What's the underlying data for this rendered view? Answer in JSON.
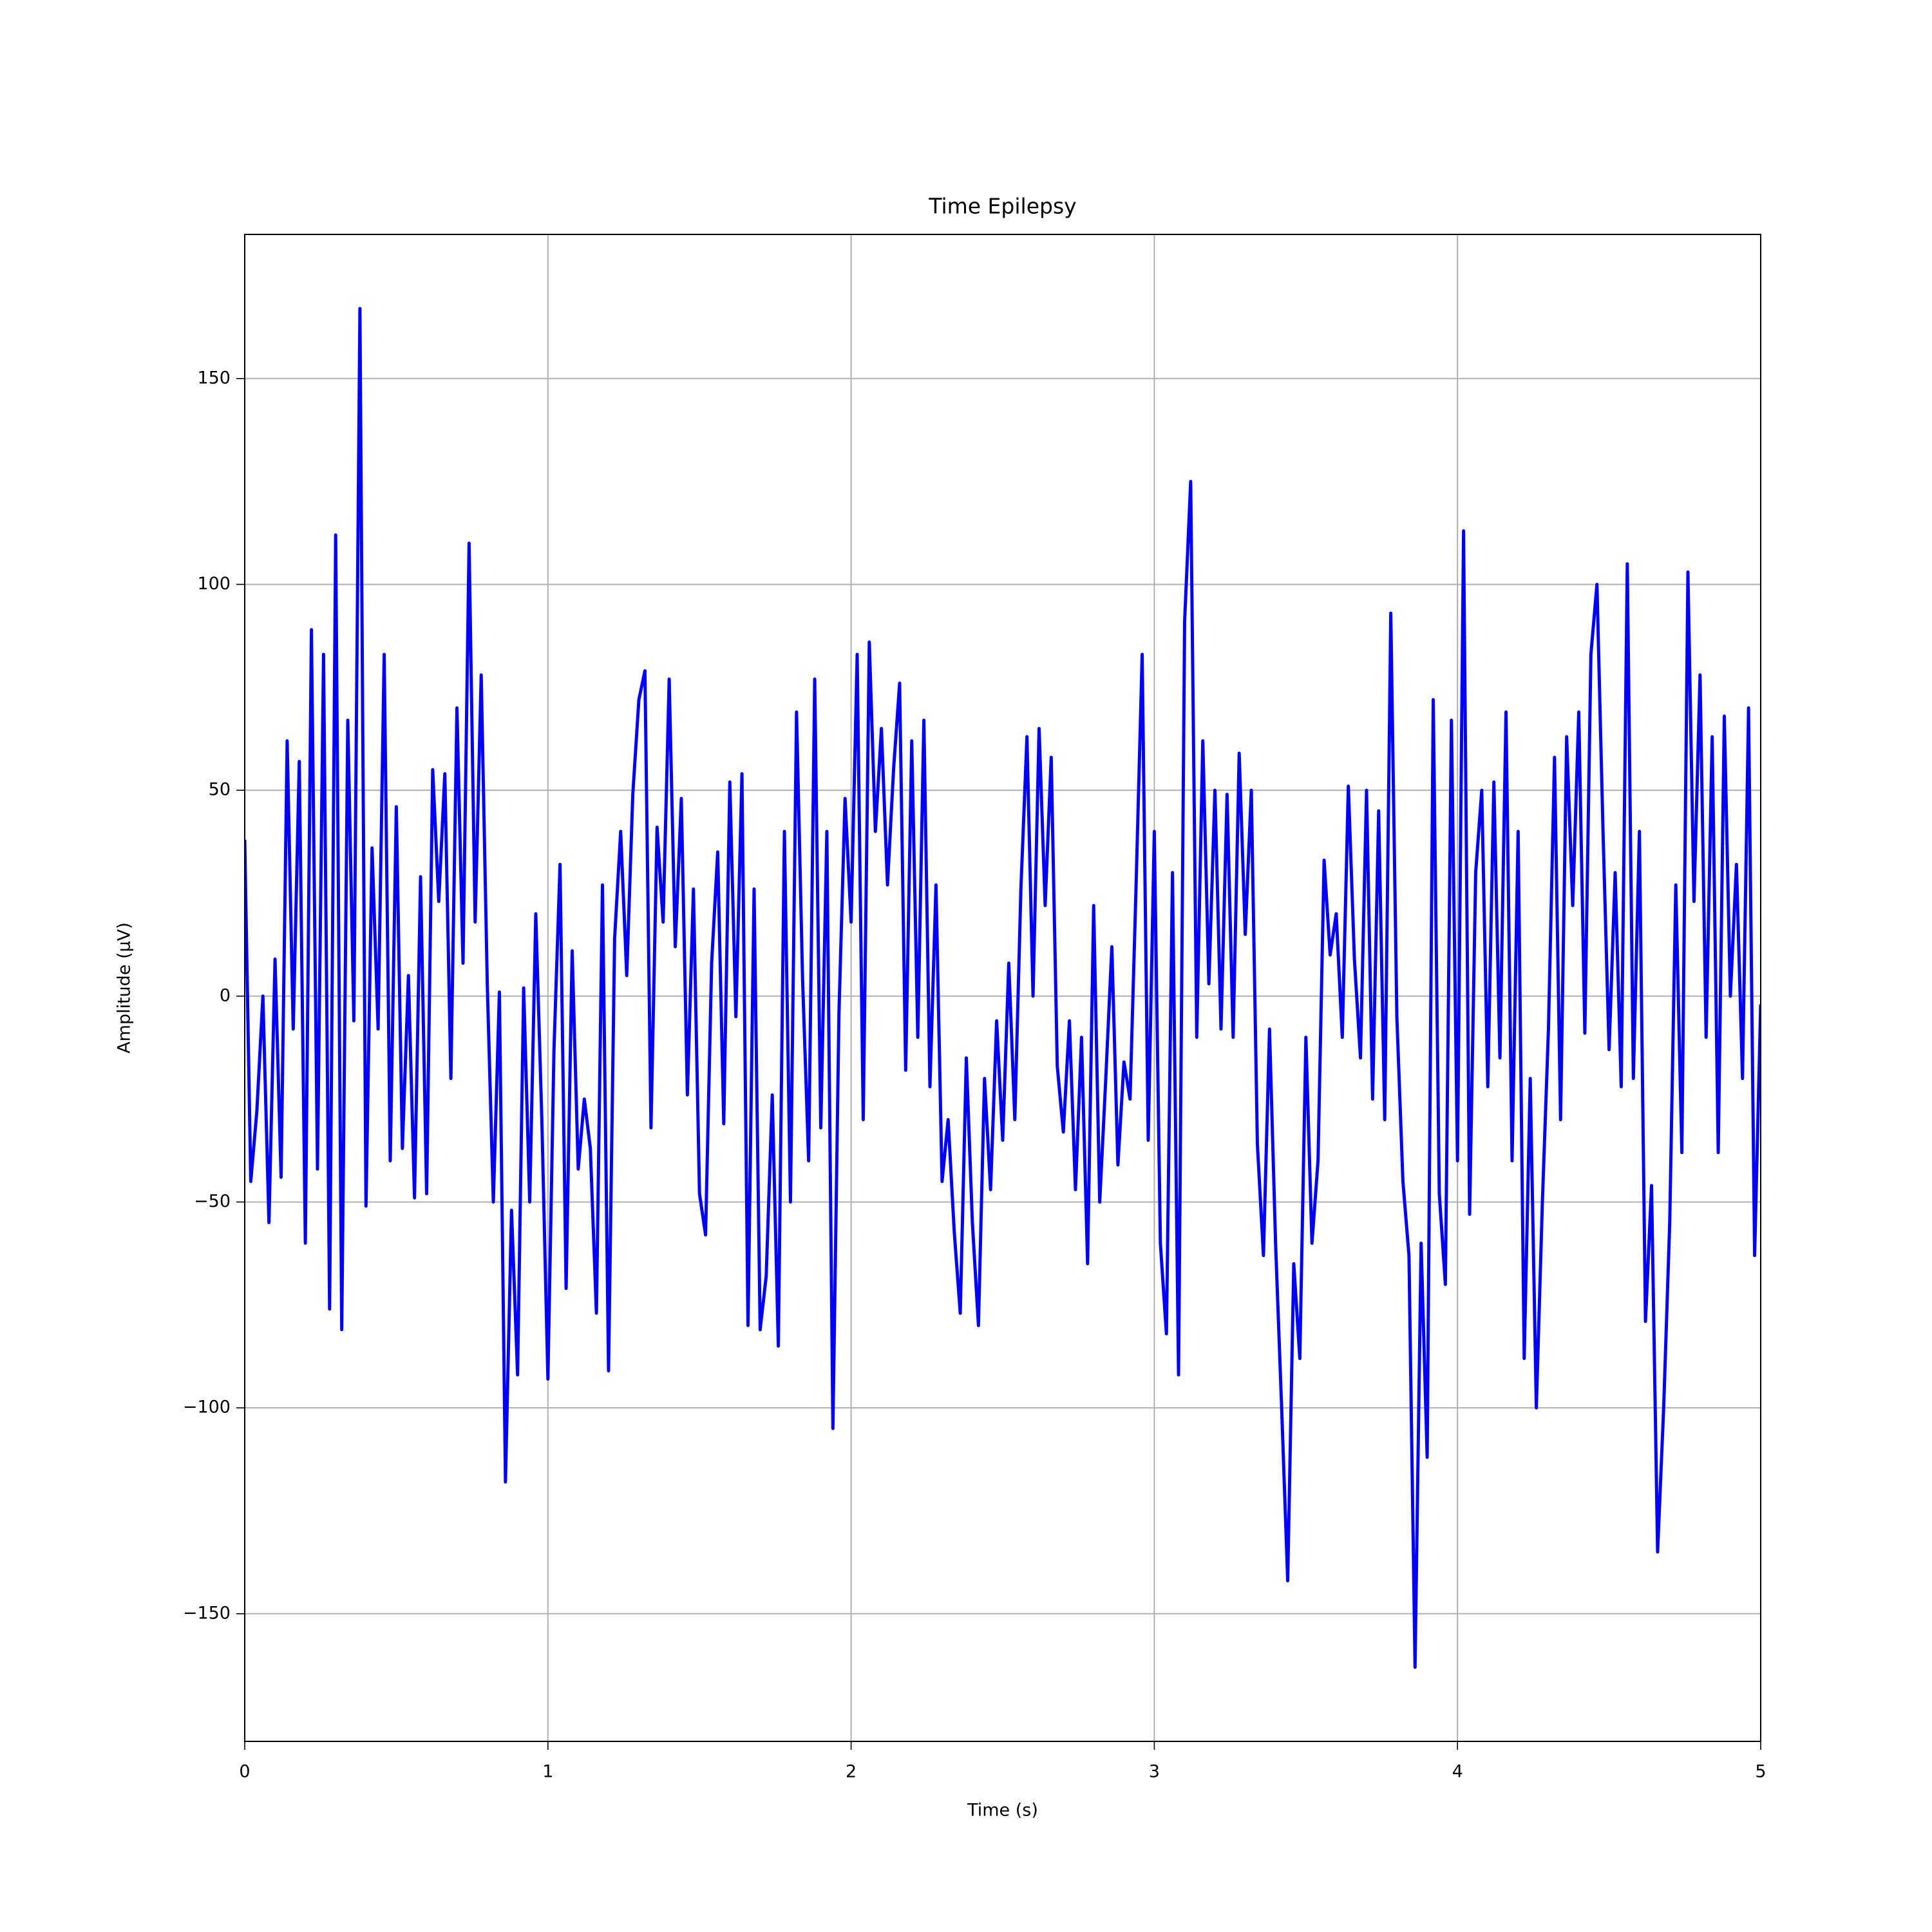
{
  "chart_data": {
    "type": "line",
    "title": "Time Epilepsy",
    "x_label": "Time (s)",
    "y_label": "Amplitude (µV)",
    "color": "#0000ff",
    "grid": true,
    "xlim": [
      0,
      5
    ],
    "ylim": [
      -181,
      185
    ],
    "xticks": [
      0,
      1,
      2,
      3,
      4,
      5
    ],
    "yticks": [
      {
        "value": -150,
        "label": "−150"
      },
      {
        "value": -100,
        "label": "−100"
      },
      {
        "value": -50,
        "label": "−50"
      },
      0,
      50,
      100,
      150
    ],
    "x": [
      0,
      0.02,
      0.04,
      0.06,
      0.08,
      0.1,
      0.12,
      0.14,
      0.16,
      0.18,
      0.2,
      0.22,
      0.24,
      0.26,
      0.28,
      0.3,
      0.32,
      0.34,
      0.36,
      0.38,
      0.4,
      0.42,
      0.44,
      0.46,
      0.48,
      0.5,
      0.52,
      0.54,
      0.56,
      0.58,
      0.6,
      0.62,
      0.64,
      0.66,
      0.68,
      0.7,
      0.72,
      0.74,
      0.76,
      0.78,
      0.8,
      0.82,
      0.84,
      0.86,
      0.88,
      0.9,
      0.92,
      0.94,
      0.96,
      0.98,
      1,
      1.02,
      1.04,
      1.06,
      1.08,
      1.1,
      1.12,
      1.14,
      1.16,
      1.18,
      1.2,
      1.22,
      1.24,
      1.26,
      1.28,
      1.3,
      1.32,
      1.34,
      1.36,
      1.38,
      1.4,
      1.42,
      1.44,
      1.46,
      1.48,
      1.5,
      1.52,
      1.54,
      1.56,
      1.58,
      1.6,
      1.62,
      1.64,
      1.66,
      1.68,
      1.7,
      1.72,
      1.74,
      1.76,
      1.78,
      1.8,
      1.82,
      1.84,
      1.86,
      1.88,
      1.9,
      1.92,
      1.94,
      1.96,
      1.98,
      2,
      2.02,
      2.04,
      2.06,
      2.08,
      2.1,
      2.12,
      2.14,
      2.16,
      2.18,
      2.2,
      2.22,
      2.24,
      2.26,
      2.28,
      2.3,
      2.32,
      2.34,
      2.36,
      2.38,
      2.4,
      2.42,
      2.44,
      2.46,
      2.48,
      2.5,
      2.52,
      2.54,
      2.56,
      2.58,
      2.6,
      2.62,
      2.64,
      2.66,
      2.68,
      2.7,
      2.72,
      2.74,
      2.76,
      2.78,
      2.8,
      2.82,
      2.84,
      2.86,
      2.88,
      2.9,
      2.92,
      2.94,
      2.96,
      2.98,
      3,
      3.02,
      3.04,
      3.06,
      3.08,
      3.1,
      3.12,
      3.14,
      3.16,
      3.18,
      3.2,
      3.22,
      3.24,
      3.26,
      3.28,
      3.3,
      3.32,
      3.34,
      3.36,
      3.38,
      3.4,
      3.42,
      3.44,
      3.46,
      3.48,
      3.5,
      3.52,
      3.54,
      3.56,
      3.58,
      3.6,
      3.62,
      3.64,
      3.66,
      3.68,
      3.7,
      3.72,
      3.74,
      3.76,
      3.78,
      3.8,
      3.82,
      3.84,
      3.86,
      3.88,
      3.9,
      3.92,
      3.94,
      3.96,
      3.98,
      4,
      4.02,
      4.04,
      4.06,
      4.08,
      4.1,
      4.12,
      4.14,
      4.16,
      4.18,
      4.2,
      4.22,
      4.24,
      4.26,
      4.28,
      4.3,
      4.32,
      4.34,
      4.36,
      4.38,
      4.4,
      4.42,
      4.44,
      4.46,
      4.48,
      4.5,
      4.52,
      4.54,
      4.56,
      4.58,
      4.6,
      4.62,
      4.64,
      4.66,
      4.68,
      4.7,
      4.72,
      4.74,
      4.76,
      4.78,
      4.8,
      4.82,
      4.84,
      4.86,
      4.88,
      4.9,
      4.92,
      4.94,
      4.96,
      4.98,
      5
    ],
    "values": [
      38,
      -45,
      -28,
      0,
      -55,
      9,
      -44,
      62,
      -8,
      57,
      -60,
      89,
      -42,
      83,
      -76,
      112,
      -81,
      67,
      -6,
      167,
      -51,
      36,
      -8,
      83,
      -40,
      46,
      -37,
      5,
      -49,
      29,
      -48,
      55,
      23,
      54,
      -20,
      70,
      8,
      110,
      18,
      78,
      3,
      -50,
      1,
      -118,
      -52,
      -92,
      2,
      -50,
      20,
      -30,
      -93,
      -13,
      32,
      -71,
      11,
      -42,
      -25,
      -37,
      -77,
      27,
      -91,
      14,
      40,
      5,
      49,
      72,
      79,
      -32,
      41,
      18,
      77,
      12,
      48,
      -24,
      26,
      -48,
      -58,
      8,
      35,
      -31,
      52,
      -5,
      54,
      -80,
      26,
      -81,
      -68,
      -24,
      -85,
      40,
      -50,
      69,
      4,
      -40,
      77,
      -32,
      40,
      -105,
      -4,
      48,
      18,
      83,
      -30,
      86,
      40,
      65,
      27,
      55,
      76,
      -18,
      62,
      -10,
      67,
      -22,
      27,
      -45,
      -30,
      -57,
      -77,
      -15,
      -55,
      -80,
      -20,
      -47,
      -6,
      -35,
      8,
      -30,
      26,
      63,
      0,
      65,
      22,
      58,
      -17,
      -33,
      -6,
      -47,
      -10,
      -65,
      22,
      -50,
      -20,
      12,
      -41,
      -16,
      -25,
      27,
      83,
      -35,
      40,
      -60,
      -82,
      30,
      -92,
      91,
      125,
      -10,
      62,
      3,
      50,
      -8,
      49,
      -10,
      59,
      15,
      50,
      -36,
      -63,
      -8,
      -60,
      -100,
      -142,
      -65,
      -88,
      -10,
      -60,
      -40,
      33,
      10,
      20,
      -10,
      51,
      9,
      -15,
      50,
      -25,
      45,
      -30,
      93,
      -5,
      -45,
      -63,
      -163,
      -60,
      -112,
      72,
      -48,
      -70,
      67,
      -40,
      113,
      -53,
      30,
      50,
      -22,
      52,
      -15,
      69,
      -40,
      40,
      -88,
      -20,
      -100,
      -50,
      -8,
      58,
      -30,
      63,
      22,
      69,
      -9,
      83,
      100,
      40,
      -13,
      30,
      -22,
      105,
      -20,
      40,
      -79,
      -46,
      -135,
      -100,
      -55,
      27,
      -38,
      103,
      23,
      78,
      -10,
      63,
      -38,
      68,
      0,
      32,
      -20,
      70,
      -63,
      -2
    ]
  }
}
